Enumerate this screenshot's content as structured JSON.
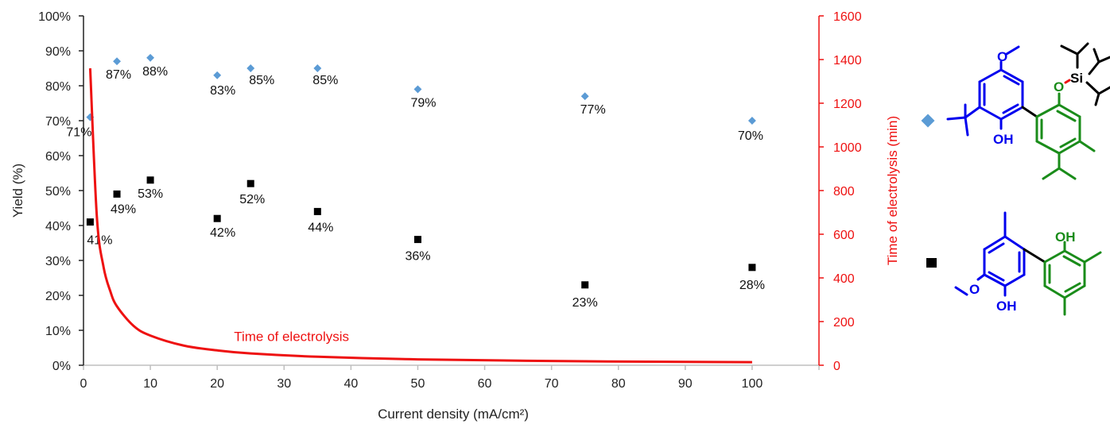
{
  "chart_data": {
    "type": "scatter",
    "xlabel": "Current density (mA/cm²)",
    "ylabel": "Yield (%)",
    "y2label": "Time of electrolysis (min)",
    "xlim": [
      0,
      110
    ],
    "ylim": [
      0,
      100
    ],
    "y2lim": [
      0,
      1600
    ],
    "xticks": [
      0,
      10,
      20,
      30,
      40,
      50,
      60,
      70,
      80,
      90,
      100
    ],
    "yticks": [
      "0%",
      "10%",
      "20%",
      "30%",
      "40%",
      "50%",
      "60%",
      "70%",
      "80%",
      "90%",
      "100%"
    ],
    "y2ticks": [
      0,
      200,
      400,
      600,
      800,
      1000,
      1200,
      1400,
      1600
    ],
    "series": [
      {
        "marker": "diamond",
        "color": "#5b9bd5",
        "x": [
          1,
          5,
          10,
          20,
          25,
          35,
          50,
          75,
          100
        ],
        "y": [
          71,
          87,
          88,
          83,
          85,
          85,
          79,
          77,
          70
        ],
        "labels": [
          "71%",
          "87%",
          "88%",
          "83%",
          "85%",
          "85%",
          "79%",
          "77%",
          "70%"
        ]
      },
      {
        "marker": "square",
        "color": "#000000",
        "x": [
          1,
          5,
          10,
          20,
          25,
          35,
          50,
          75,
          100
        ],
        "y": [
          41,
          49,
          53,
          42,
          52,
          44,
          36,
          23,
          28
        ],
        "labels": [
          "41%",
          "49%",
          "53%",
          "42%",
          "52%",
          "44%",
          "36%",
          "23%",
          "28%"
        ]
      },
      {
        "name": "Time of electrolysis",
        "color": "#ee1111",
        "axis": "right",
        "x": [
          1,
          2,
          3,
          4,
          5,
          7.5,
          10,
          15,
          20,
          25,
          35,
          50,
          75,
          100
        ],
        "y": [
          1360,
          680,
          450,
          340,
          270,
          180,
          136,
          90,
          68,
          54,
          39,
          27,
          18,
          14
        ]
      }
    ]
  },
  "legend_structures": {
    "diamond_molecule": {
      "colors": {
        "blue": "#0000ee",
        "green": "#1a8c1a",
        "red": "#ee1111",
        "black": "#000000"
      },
      "atom_labels": [
        "O",
        "OH",
        "O",
        "Si"
      ]
    },
    "square_molecule": {
      "colors": {
        "blue": "#0000ee",
        "green": "#1a8c1a",
        "red": "#ee1111",
        "black": "#000000"
      },
      "atom_labels": [
        "O",
        "OH",
        "OH"
      ]
    }
  }
}
